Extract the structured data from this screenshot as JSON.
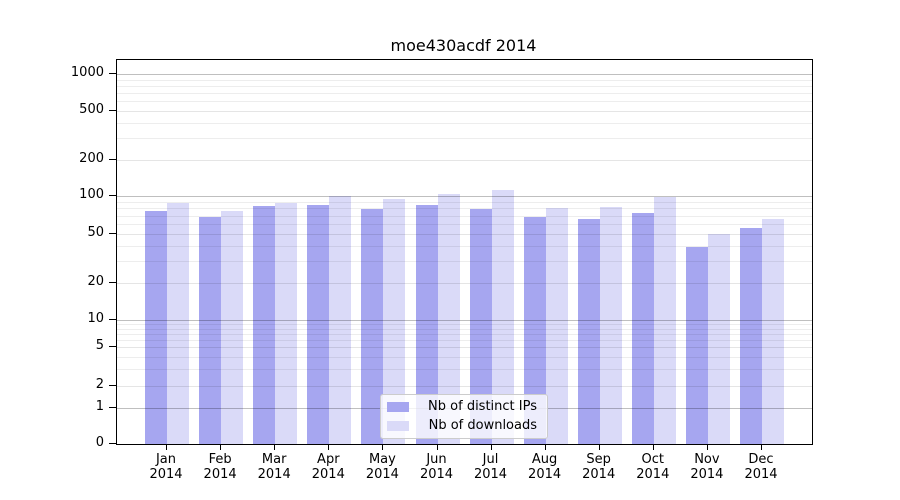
{
  "title": "moe430acdf 2014",
  "chart_data": {
    "type": "bar",
    "title": "moe430acdf 2014",
    "categories": [
      "Jan 2014",
      "Feb 2014",
      "Mar 2014",
      "Apr 2014",
      "May 2014",
      "Jun 2014",
      "Jul 2014",
      "Aug 2014",
      "Sep 2014",
      "Oct 2014",
      "Nov 2014",
      "Dec 2014"
    ],
    "x_tick_months": [
      "Jan",
      "Feb",
      "Mar",
      "Apr",
      "May",
      "Jun",
      "Jul",
      "Aug",
      "Sep",
      "Oct",
      "Nov",
      "Dec"
    ],
    "x_tick_year": "2014",
    "series": [
      {
        "name": "Nb of distinct IPs",
        "color": "#a6a6f0",
        "values": [
          77,
          68,
          83,
          86,
          79,
          86,
          79,
          69,
          66,
          74,
          39,
          56
        ]
      },
      {
        "name": "Nb of downloads",
        "color": "#dadaf8",
        "values": [
          88,
          77,
          89,
          100,
          96,
          104,
          113,
          80,
          82,
          99,
          50,
          66
        ]
      }
    ],
    "yticks": [
      0,
      1,
      2,
      5,
      10,
      20,
      50,
      100,
      200,
      500,
      1000
    ],
    "yscale": "symlog",
    "ylim": [
      0,
      1000
    ],
    "grid": true,
    "legend_position": "bottom-center"
  },
  "colors": {
    "axis": "#000000",
    "grid_major": "#bfbfbf",
    "grid_minor": "#ededed",
    "background": "#ffffff"
  }
}
